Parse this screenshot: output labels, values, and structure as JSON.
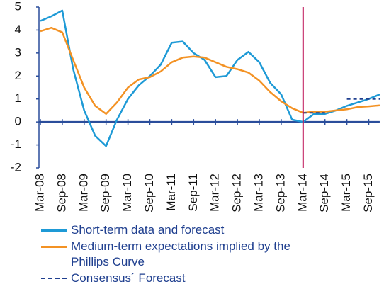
{
  "chart_data": {
    "type": "line",
    "x": [
      "Mar-08",
      null,
      "Sep-08",
      null,
      "Mar-09",
      null,
      "Sep-09",
      null,
      "Mar-10",
      null,
      "Sep-10",
      null,
      "Mar-11",
      null,
      "Sep-11",
      null,
      "Mar-12",
      null,
      "Sep-12",
      null,
      "Mar-13",
      null,
      "Sep-13",
      null,
      "Mar-14",
      null,
      "Sep-14",
      null,
      "Mar-15",
      null,
      "Sep-15",
      null
    ],
    "series": [
      {
        "name": "Short-term data and forecast",
        "color": "#1e9ad6",
        "dash": false,
        "values": [
          4.4,
          4.6,
          4.85,
          2.3,
          0.5,
          -0.6,
          -1.05,
          0.1,
          1.0,
          1.6,
          2.0,
          2.5,
          3.45,
          3.5,
          3.0,
          2.7,
          1.95,
          2.0,
          2.7,
          3.05,
          2.6,
          1.7,
          1.2,
          0.1,
          0.0,
          0.35,
          0.35,
          0.5,
          0.7,
          0.85,
          1.0,
          1.2
        ]
      },
      {
        "name": "Medium-term expectations implied by the Phillips Curve",
        "color": "#f39224",
        "dash": false,
        "values": [
          3.95,
          4.1,
          3.9,
          2.7,
          1.5,
          0.7,
          0.35,
          0.85,
          1.5,
          1.85,
          1.95,
          2.2,
          2.6,
          2.8,
          2.85,
          2.8,
          2.6,
          2.4,
          2.3,
          2.15,
          1.8,
          1.3,
          0.9,
          0.6,
          0.4,
          0.45,
          0.45,
          0.5,
          0.55,
          0.65,
          0.68,
          0.72
        ]
      },
      {
        "name": "Consensus´ Forecast",
        "color": "#1f3f8f",
        "dash": true,
        "values": [
          null,
          null,
          null,
          null,
          null,
          null,
          null,
          null,
          null,
          null,
          null,
          null,
          null,
          null,
          null,
          null,
          null,
          null,
          null,
          null,
          null,
          null,
          null,
          null,
          0.4,
          0.4,
          0.4,
          null,
          1.0,
          1.0,
          1.0,
          1.0
        ]
      }
    ],
    "ylim": [
      -2,
      5
    ],
    "yticks": [
      -2,
      -1,
      0,
      1,
      2,
      3,
      4,
      5
    ]
  }
}
